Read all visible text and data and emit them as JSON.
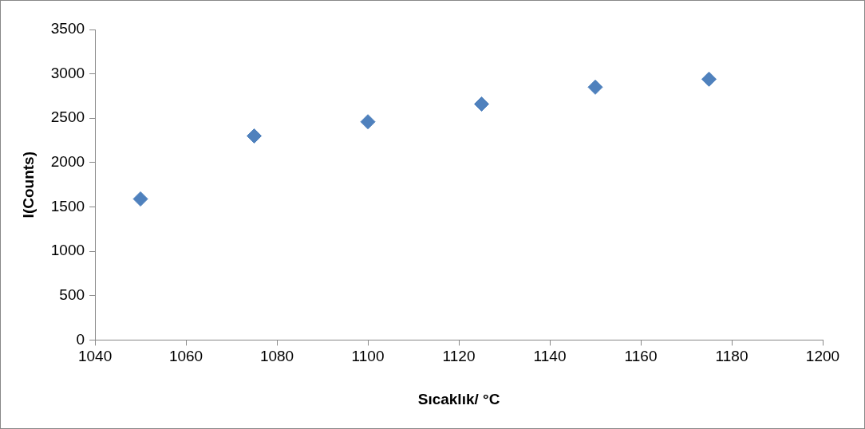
{
  "chart_data": {
    "type": "scatter",
    "xlabel": "Sıcaklık/ °C",
    "ylabel": "I(Counts)",
    "x": [
      1050,
      1075,
      1100,
      1125,
      1150,
      1175
    ],
    "values": [
      1590,
      2300,
      2460,
      2660,
      2850,
      2940
    ],
    "color": "#4f81bd",
    "marker": "diamond",
    "grid": false,
    "legend": false,
    "xlim": [
      1040,
      1200
    ],
    "xticks": [
      1040,
      1060,
      1080,
      1100,
      1120,
      1140,
      1160,
      1180,
      1200
    ],
    "ylim": [
      0,
      3500
    ],
    "yticks": [
      0,
      500,
      1000,
      1500,
      2000,
      2500,
      3000,
      3500
    ]
  }
}
